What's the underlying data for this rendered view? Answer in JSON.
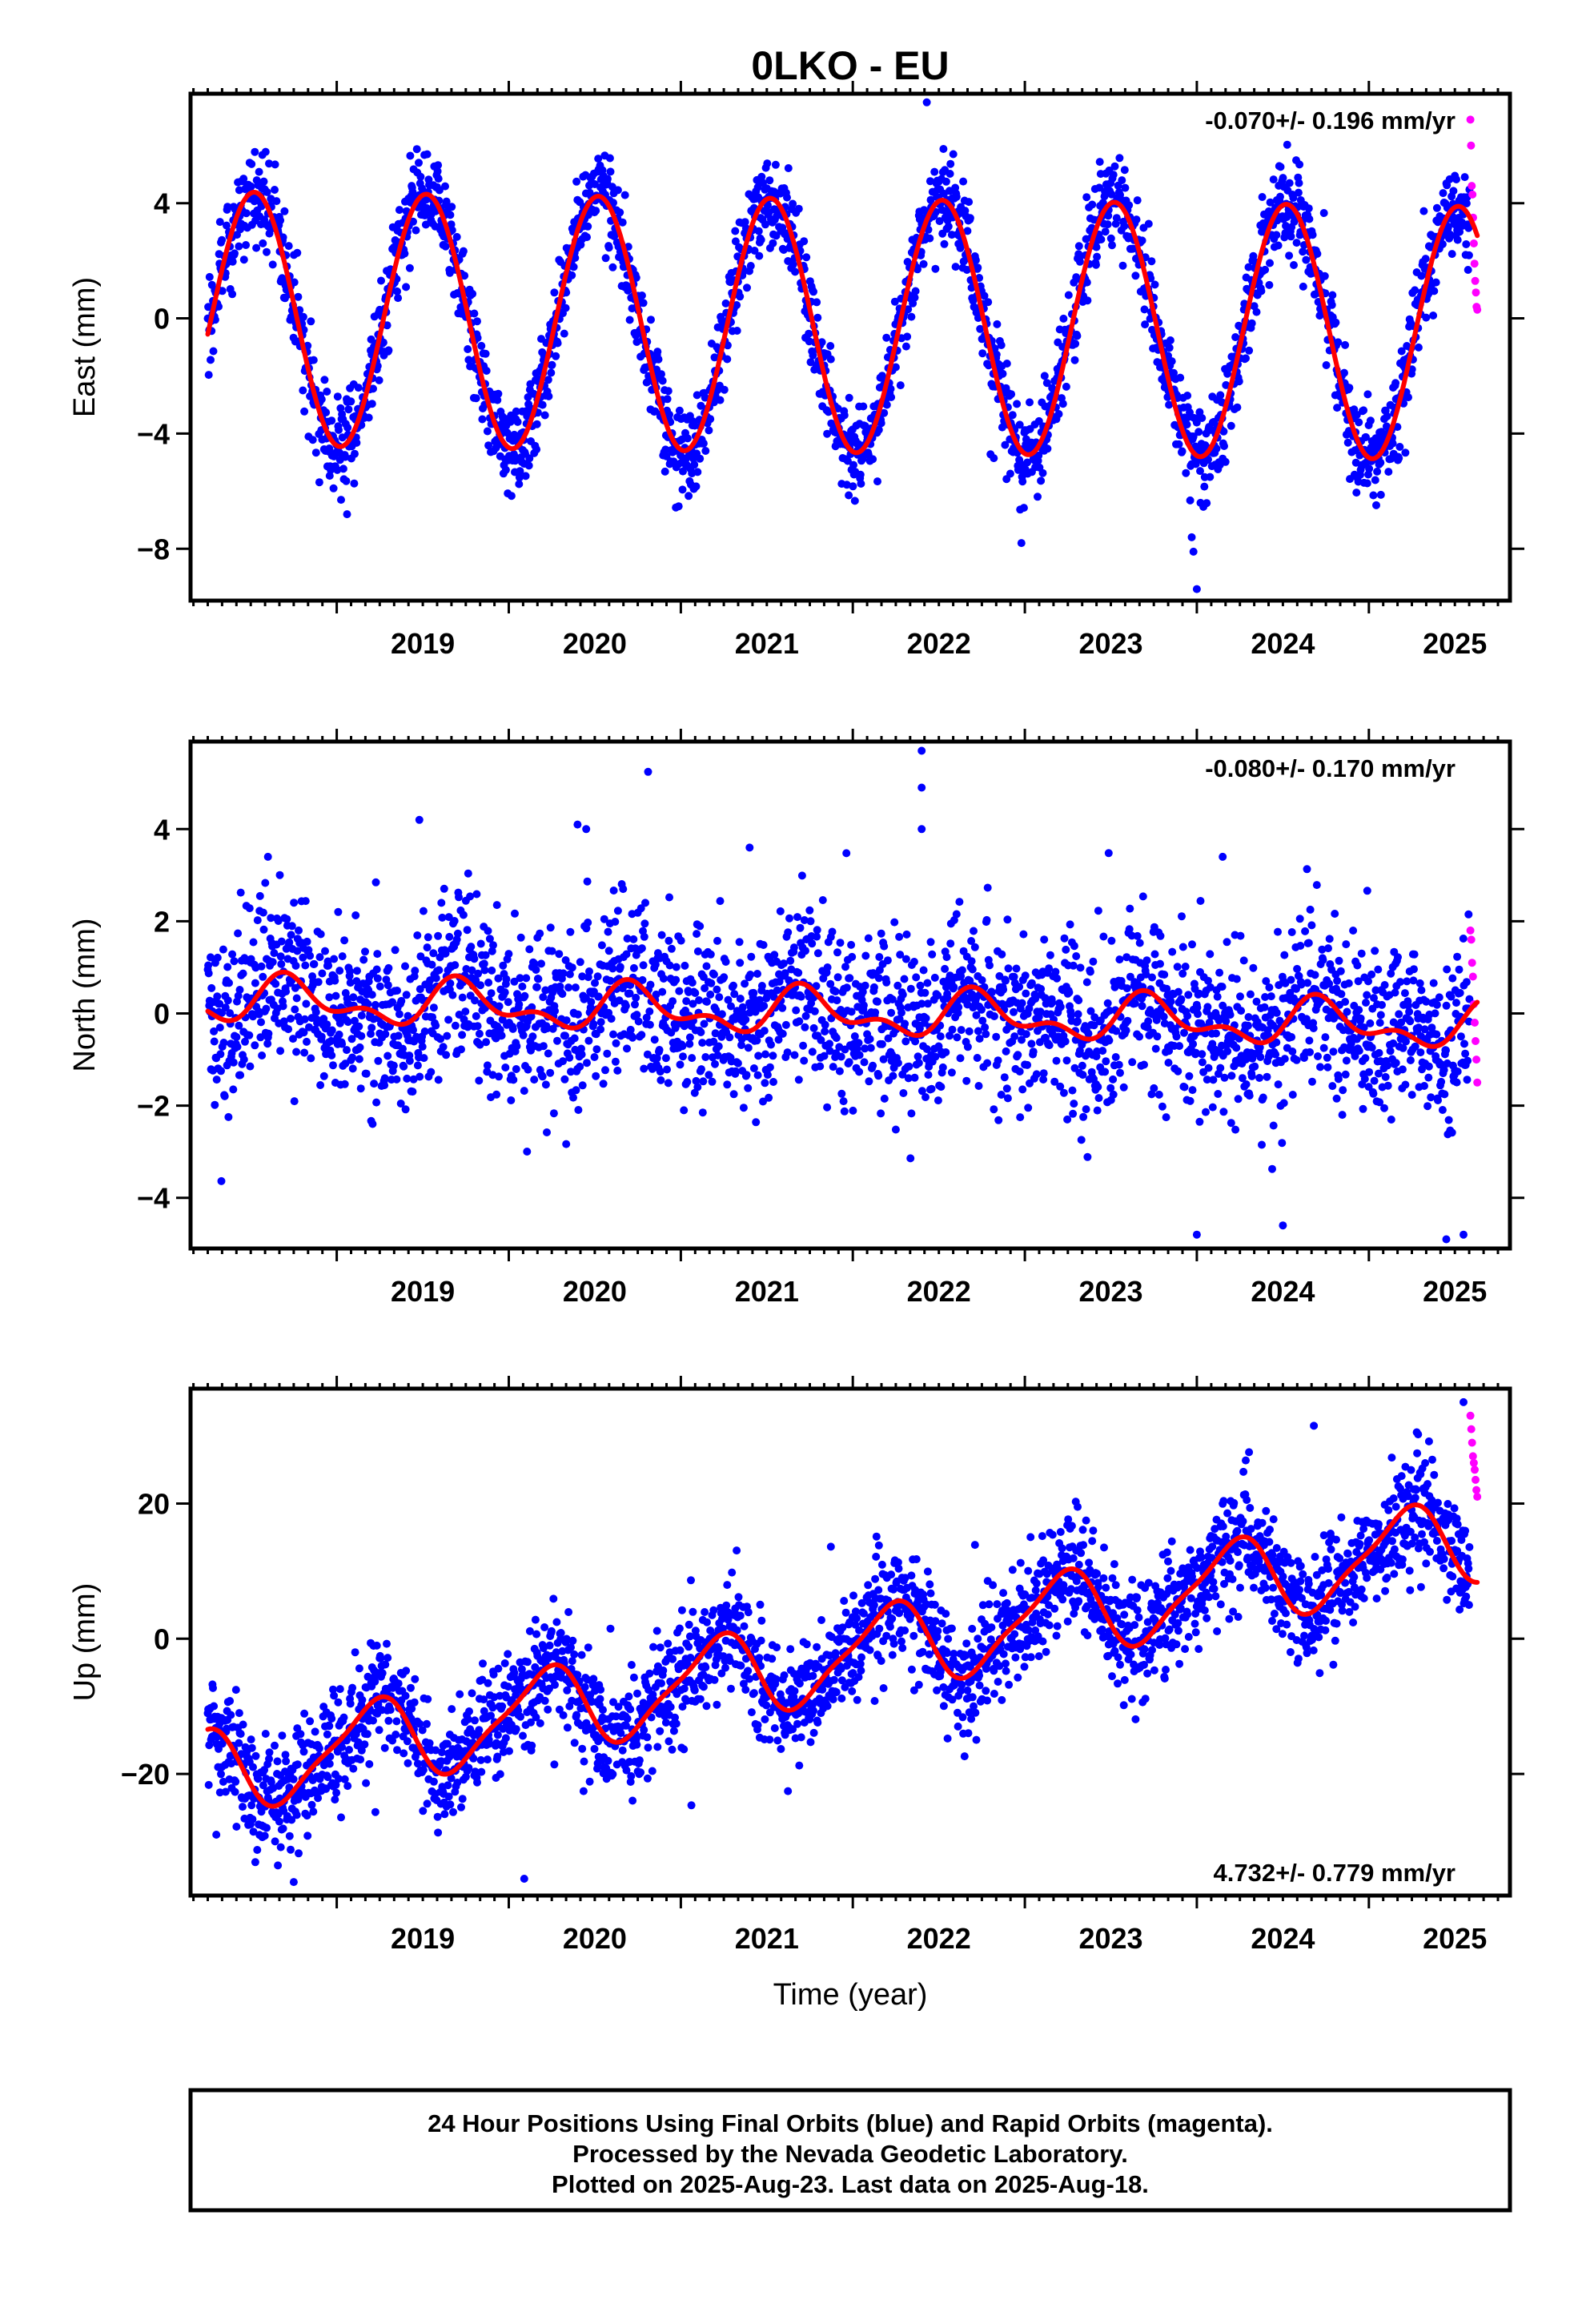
{
  "colors": {
    "final": "#0000ff",
    "rapid": "#ff00ff",
    "model": "#ff0000",
    "frame": "#000000"
  },
  "chart_data": [
    {
      "type": "scatter",
      "title": "0LKO - EU",
      "xlabel": "",
      "ylabel": "East (mm)",
      "xlim": [
        2018.15,
        2025.82
      ],
      "ylim": [
        -9.8,
        7.8
      ],
      "yticks": [
        -8,
        -4,
        0,
        4
      ],
      "ytick_labels": [
        "−8",
        "−4",
        "0",
        "4"
      ],
      "xticks": [
        2019,
        2020,
        2021,
        2022,
        2023,
        2024,
        2025
      ],
      "xtick_labels": [
        "2019",
        "2020",
        "2021",
        "2022",
        "2023",
        "2024",
        "2025"
      ],
      "rate_label": "-0.070+/- 0.196 mm/yr",
      "rate_position": "top-right",
      "grid": false,
      "series": [
        {
          "kind": "points",
          "color": "final",
          "x_start": 2018.25,
          "x_end": 2025.585,
          "trend": [
            0.0,
            -0.07
          ],
          "annual": [
            4.4,
            0.27
          ],
          "semiannual": [
            0.0,
            0.0
          ],
          "noise": 0.8,
          "outliers": [
            [
              2024.0,
              -9.4
            ],
            [
              2023.98,
              -8.1
            ],
            [
              2023.97,
              -7.6
            ],
            [
              2022.98,
              -7.8
            ],
            [
              2019.06,
              -6.8
            ],
            [
              2022.43,
              7.5
            ]
          ]
        },
        {
          "kind": "points",
          "color": "rapid",
          "x_start": 2025.59,
          "x_end": 2025.63,
          "values": [
            6.9,
            6.0,
            4.6,
            4.3,
            3.5,
            2.6,
            1.9,
            1.3,
            0.9,
            0.4,
            0.3
          ]
        },
        {
          "kind": "model",
          "color": "model",
          "x_start": 2018.25,
          "x_end": 2025.63,
          "trend": [
            0.0,
            -0.07
          ],
          "annual": [
            4.4,
            0.27
          ],
          "semiannual": [
            0.0,
            0.0
          ]
        }
      ]
    },
    {
      "type": "scatter",
      "title": "",
      "xlabel": "",
      "ylabel": "North (mm)",
      "xlim": [
        2018.15,
        2025.82
      ],
      "ylim": [
        -5.1,
        5.9
      ],
      "yticks": [
        -4,
        -2,
        0,
        2,
        4
      ],
      "ytick_labels": [
        "−4",
        "−2",
        "0",
        "2",
        "4"
      ],
      "xticks": [
        2019,
        2020,
        2021,
        2022,
        2023,
        2024,
        2025
      ],
      "xtick_labels": [
        "2019",
        "2020",
        "2021",
        "2022",
        "2023",
        "2024",
        "2025"
      ],
      "rate_label": "-0.080+/- 0.170 mm/yr",
      "rate_position": "top-right",
      "grid": false,
      "series": [
        {
          "kind": "points",
          "color": "final",
          "x_start": 2018.25,
          "x_end": 2025.585,
          "trend": [
            0.3,
            -0.08
          ],
          "annual": [
            0.4,
            0.48
          ],
          "semiannual": [
            0.25,
            0.05
          ],
          "noise": 0.9,
          "outliers": [
            [
              2022.4,
              5.7
            ],
            [
              2022.4,
              4.9
            ],
            [
              2022.4,
              4.0
            ],
            [
              2019.48,
              4.2
            ],
            [
              2020.4,
              4.1
            ],
            [
              2020.45,
              4.0
            ],
            [
              2021.4,
              3.6
            ],
            [
              2024.15,
              3.4
            ],
            [
              2018.6,
              3.4
            ],
            [
              2024.0,
              -4.8
            ],
            [
              2024.5,
              -4.6
            ],
            [
              2025.55,
              -4.8
            ],
            [
              2025.45,
              -4.9
            ]
          ]
        },
        {
          "kind": "points",
          "color": "rapid",
          "x_start": 2025.59,
          "x_end": 2025.63,
          "values": [
            1.8,
            1.6,
            1.1,
            0.8,
            0.2,
            -0.2,
            -0.6,
            -1.0,
            -1.5
          ]
        },
        {
          "kind": "model",
          "color": "model",
          "x_start": 2018.25,
          "x_end": 2025.63,
          "trend": [
            0.3,
            -0.08
          ],
          "annual": [
            0.4,
            0.48
          ],
          "semiannual": [
            0.25,
            0.05
          ]
        }
      ]
    },
    {
      "type": "scatter",
      "title": "",
      "xlabel": "Time (year)",
      "ylabel": "Up (mm)",
      "xlim": [
        2018.15,
        2025.82
      ],
      "ylim": [
        -38.0,
        37.0
      ],
      "yticks": [
        -20,
        0,
        20
      ],
      "ytick_labels": [
        "−20",
        "0",
        "20"
      ],
      "xticks": [
        2019,
        2020,
        2021,
        2022,
        2023,
        2024,
        2025
      ],
      "xtick_labels": [
        "2019",
        "2020",
        "2021",
        "2022",
        "2023",
        "2024",
        "2025"
      ],
      "rate_label": "4.732+/- 0.779 mm/yr",
      "rate_position": "bottom-right",
      "grid": false,
      "series": [
        {
          "kind": "points",
          "color": "final",
          "x_start": 2018.25,
          "x_end": 2025.585,
          "trend": [
            -20.0,
            4.732
          ],
          "annual": [
            6.0,
            0.95
          ],
          "semiannual": [
            1.5,
            0.2
          ],
          "noise": 4.2,
          "outliers": [
            [
              2018.75,
              -36.0
            ],
            [
              2018.3,
              -29.0
            ],
            [
              2025.55,
              35.0
            ],
            [
              2024.68,
              31.5
            ]
          ]
        },
        {
          "kind": "points",
          "color": "rapid",
          "x_start": 2025.59,
          "x_end": 2025.63,
          "values": [
            33.0,
            31.0,
            29.0,
            27.0,
            26.0,
            25.0,
            23.5,
            22.0,
            21.0
          ]
        },
        {
          "kind": "model",
          "color": "model",
          "x_start": 2018.25,
          "x_end": 2025.63,
          "trend": [
            -20.0,
            4.732
          ],
          "annual": [
            6.0,
            0.95
          ],
          "semiannual": [
            1.5,
            0.2
          ]
        }
      ]
    }
  ],
  "footer": {
    "line1": "24 Hour Positions Using Final Orbits (blue) and Rapid Orbits (magenta).",
    "line2": "Processed by the Nevada Geodetic Laboratory.",
    "line3": "Plotted on 2025-Aug-23. Last data on 2025-Aug-18."
  }
}
